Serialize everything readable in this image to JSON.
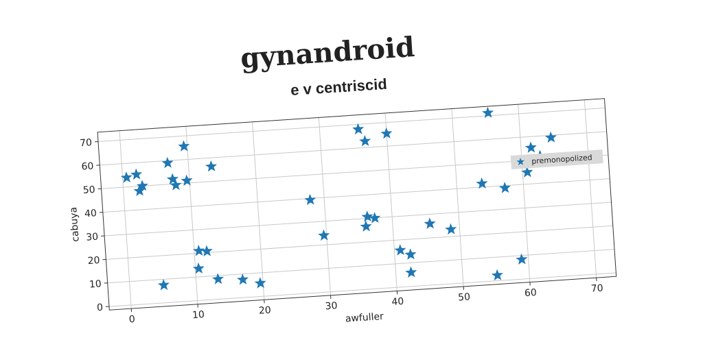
{
  "chart_data": {
    "type": "scatter",
    "title": "gynandroid",
    "subtitle": "e v centriscid",
    "x_label": "awfuller",
    "y_label": "cabuya",
    "series": [
      {
        "name": "premonopolized",
        "color": "#1f77b4",
        "x": [
          0.6,
          2.1,
          2.4,
          2.9,
          5.1,
          6.9,
          7.5,
          7.9,
          9.5,
          9.6,
          10.7,
          10.5,
          11.9,
          13.4,
          13.3,
          17,
          19.6,
          27.9,
          29.6,
          35.8,
          36.7,
          40,
          36,
          36.3,
          37.4,
          40.9,
          42.4,
          42.3,
          45.6,
          48.7,
          53.8,
          55.4,
          55.2,
          57.2,
          59,
          60.7,
          62.8,
          64.6,
          61.5,
          69.8
        ],
        "values": [
          54,
          55,
          48,
          50,
          7.5,
          59,
          52,
          49.4,
          65.6,
          51,
          21,
          13.5,
          20.6,
          56.3,
          8.5,
          7.6,
          5.6,
          39.4,
          24,
          67.9,
          62.7,
          65.3,
          26.6,
          30.7,
          29.9,
          15.6,
          13.5,
          5.9,
          26,
          23,
          41.5,
          71.2,
          2.3,
          39,
          8.3,
          45,
          51.5,
          59,
          55.3,
          49.6
        ]
      }
    ],
    "xlim": [
      -3.3,
      73
    ],
    "ylim": [
      -1.5,
      74
    ],
    "xticks": [
      0,
      10,
      20,
      30,
      40,
      50,
      60,
      70
    ],
    "yticks": [
      0,
      10,
      20,
      30,
      40,
      50,
      60,
      70
    ],
    "grid": true,
    "legend": "right"
  }
}
